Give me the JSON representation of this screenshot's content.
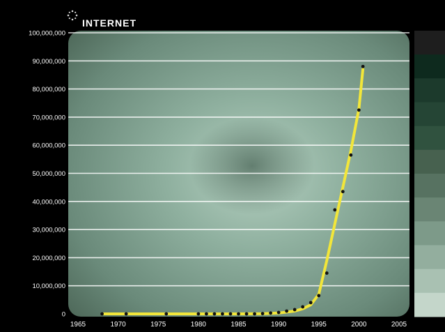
{
  "chart_data": {
    "type": "line",
    "title": "INTERNET",
    "xlabel": "",
    "ylabel": "",
    "xlim": [
      1965,
      2005
    ],
    "ylim": [
      0,
      100000000
    ],
    "x_ticks": [
      1965,
      1970,
      1975,
      1980,
      1985,
      1990,
      1995,
      2000,
      2005
    ],
    "y_ticks": [
      0,
      10000000,
      20000000,
      30000000,
      40000000,
      50000000,
      60000000,
      70000000,
      80000000,
      90000000,
      100000000
    ],
    "y_tick_labels": [
      "0",
      "10,000,000",
      "20,000,000",
      "30,000,000",
      "40,000,000",
      "50,000,000",
      "60,000,000",
      "70,000,000",
      "80,000,000",
      "90,000,000",
      "100,000,000"
    ],
    "grid": true,
    "series": [
      {
        "type": "scatter",
        "color": "#111111",
        "x": [
          1968,
          1971,
          1976,
          1980,
          1981,
          1982,
          1983,
          1984,
          1985,
          1986,
          1987,
          1988,
          1989,
          1990,
          1991,
          1992,
          1993,
          1994,
          1995,
          1996,
          1997,
          1998,
          1999,
          2000,
          2000.5
        ],
        "y": [
          0,
          0,
          0,
          0,
          0,
          0,
          0,
          0,
          0,
          0,
          0,
          100000,
          300000,
          500000,
          1000000,
          1500000,
          2500000,
          4000000,
          6500000,
          14500000,
          37000000,
          43500000,
          56500000,
          72500000,
          88000000
        ]
      },
      {
        "type": "line",
        "color": "#f2e63a",
        "x": [
          1968,
          1975,
          1980,
          1985,
          1988,
          1990,
          1992,
          1993,
          1994,
          1995,
          1996,
          1997,
          1998,
          1999,
          2000,
          2000.5
        ],
        "y": [
          0,
          0,
          0,
          0,
          50000,
          300000,
          1000000,
          1800000,
          3200000,
          7000000,
          19000000,
          32000000,
          45000000,
          58000000,
          73000000,
          87000000
        ]
      }
    ],
    "colorbar_steps": [
      "#1e1e1e",
      "#0e2a1e",
      "#1c3a2c",
      "#254535",
      "#30523f",
      "#47614f",
      "#577261",
      "#6a8574",
      "#7d9a89",
      "#93ae9e",
      "#a9c1b2",
      "#c4d6ca"
    ]
  }
}
